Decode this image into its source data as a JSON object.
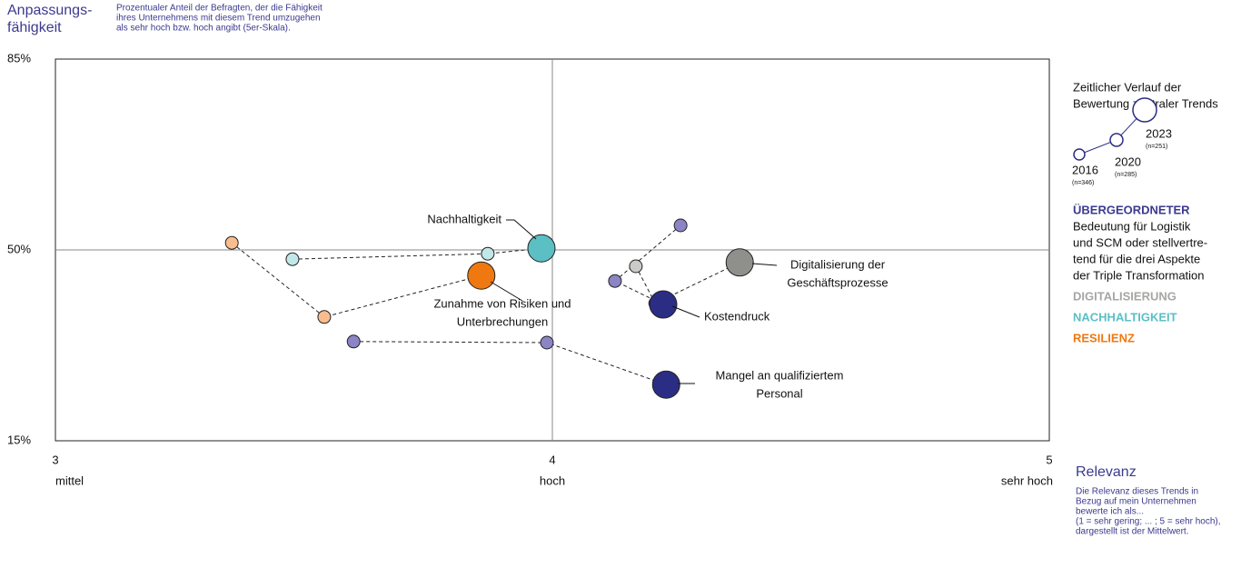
{
  "chart_data": {
    "type": "bubble-trajectory",
    "y_title": [
      "Anpassungs-",
      "fähigkeit"
    ],
    "y_description": [
      "Prozentualer Anteil der Befragten, der die Fähigkeit",
      "ihres Unternehmens mit diesem Trend umzugehen",
      "als sehr hoch bzw. hoch angibt (5er-Skala)."
    ],
    "x_title": "Relevanz",
    "x_description": [
      "Die Relevanz dieses Trends in",
      "Bezug auf mein Unternehmen",
      "bewerte ich als...",
      "(1 = sehr gering; ... ; 5 = sehr hoch),",
      "dargestellt ist der Mittelwert."
    ],
    "xlim": [
      3,
      5
    ],
    "ylim": [
      15,
      85
    ],
    "xticks": [
      3,
      4,
      5
    ],
    "xtick_sublabels": [
      "mittel",
      "hoch",
      "sehr hoch"
    ],
    "yticks": [
      {
        "value": 85,
        "label": "85%"
      },
      {
        "value": 50,
        "label": "50%"
      },
      {
        "value": 15,
        "label": "15%"
      }
    ],
    "grid_x": [
      4
    ],
    "grid_y": [
      50
    ],
    "series": [
      {
        "label": [
          "Zunahme von Risiken und",
          "Unterbrechungen"
        ],
        "color": "#f07810",
        "color_light": "#f8bd8f",
        "x": [
          3.355,
          3.541,
          3.857
        ],
        "y": [
          51.3,
          37.7,
          45.3
        ]
      },
      {
        "label": [
          "Nachhaltigkeit"
        ],
        "color": "#5bbfc4",
        "color_light": "#c2e7e9",
        "x": [
          3.477,
          3.87,
          3.978
        ],
        "y": [
          48.3,
          49.3,
          50.3
        ]
      },
      {
        "label": [
          "Digitalisierung der",
          "Geschäftsprozesse"
        ],
        "color": "#8f8f8c",
        "color_light": "#cacac8",
        "x": [
          4.168,
          4.207,
          4.377
        ],
        "y": [
          47.0,
          40.2,
          47.7
        ]
      },
      {
        "label": [
          "Kostendruck"
        ],
        "color": "#2b2d84",
        "color_light": "#8b85c6",
        "x": [
          4.258,
          4.126,
          4.223
        ],
        "y": [
          54.5,
          44.3,
          40.0
        ]
      },
      {
        "label": [
          "Mangel an qualifiziertem",
          "Personal"
        ],
        "color": "#2b2d84",
        "color_light": "#8b85c6",
        "x": [
          3.6,
          3.989,
          4.229
        ],
        "y": [
          33.2,
          33.0,
          25.3
        ]
      }
    ],
    "legend": {
      "title": [
        "Zeitlicher Verlauf  der",
        "Bewertung zentraler Trends"
      ],
      "years": [
        {
          "year": "2016",
          "n": "(n=346)"
        },
        {
          "year": "2020",
          "n": "(n=285)"
        },
        {
          "year": "2023",
          "n": "(n=251)"
        }
      ],
      "groups": [
        {
          "name": "ÜBERGEORDNETER",
          "color": "#3b3a8f",
          "lines": [
            "Bedeutung für Logistik",
            "und SCM oder stellvertre-",
            "tend für die drei Aspekte",
            "der Triple Transformation"
          ]
        },
        {
          "name": "DIGITALISIERUNG",
          "color": "#a6a6a4",
          "lines": []
        },
        {
          "name": "NACHHALTIGKEIT",
          "color": "#5bbfc4",
          "lines": []
        },
        {
          "name": "RESILIENZ",
          "color": "#f07810",
          "lines": []
        }
      ]
    }
  }
}
